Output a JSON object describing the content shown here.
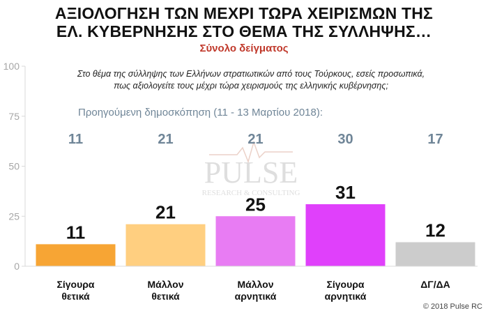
{
  "header": {
    "title_line1": "ΑΞΙΟΛΟΓΗΣΗ ΤΩΝ ΜΕΧΡΙ ΤΩΡΑ ΧΕΙΡΙΣΜΩΝ ΤΗΣ",
    "title_line2": "ΕΛ. ΚΥΒΕΡΝΗΣΗΣ ΣΤΟ ΘΕΜΑ ΤΗΣ ΣΥΛΛΗΨΗΣ…",
    "subtitle": "Σύνολο δείγματος"
  },
  "question": {
    "line1": "Στο θέμα της σύλληψης των Ελλήνων στρατιωτικών από τους Τούρκους, εσείς προσωπικά,",
    "line2": "πως αξιολογείτε τους μέχρι τώρα χειρισμούς της ελληνικής κυβέρνησης;"
  },
  "previous_label": "Προηγούμενη δημοσκόπηση (11 - 13 Μαρτίου 2018):",
  "watermark": {
    "brand": "PULSE",
    "tagline": "RESEARCH & CONSULTING"
  },
  "footer": "© 2018 Pulse RC",
  "chart_data": {
    "type": "bar",
    "categories": [
      [
        "Σίγουρα",
        "θετικά"
      ],
      [
        "Μάλλον",
        "θετικά"
      ],
      [
        "Μάλλον",
        "αρνητικά"
      ],
      [
        "Σίγουρα",
        "αρνητικά"
      ],
      [
        "ΔΓ/ΔΑ"
      ]
    ],
    "values": [
      11,
      21,
      25,
      31,
      12
    ],
    "previous_values": [
      11,
      21,
      21,
      30,
      17
    ],
    "colors": [
      "#f7a534",
      "#ffcf80",
      "#e87cf3",
      "#e040fb",
      "#cccccc"
    ],
    "ylim": [
      0,
      100
    ],
    "yticks": [
      0,
      25,
      50,
      75,
      100
    ],
    "grid": false,
    "legend": "none"
  }
}
